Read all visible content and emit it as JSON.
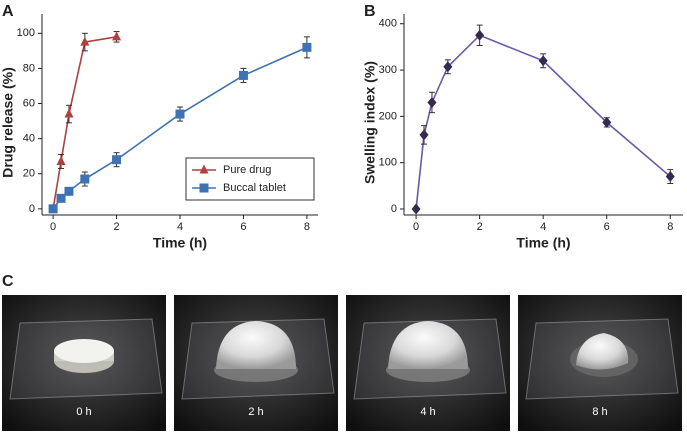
{
  "chart_data": [
    {
      "type": "line",
      "panel": "A",
      "x_label": "Time (h)",
      "y_label": "Drug release (%)",
      "xlim": [
        -0.35,
        8.35
      ],
      "xticks": [
        0,
        2,
        4,
        6,
        8
      ],
      "ylim": [
        -3.5,
        111
      ],
      "yticks": [
        0,
        20,
        40,
        60,
        80,
        100
      ],
      "legend": "lower right",
      "series": [
        {
          "name": "Pure drug",
          "color": "#b04040",
          "marker": "triangle",
          "x": [
            0,
            0.25,
            0.5,
            1,
            2
          ],
          "values": [
            0,
            27,
            54,
            95,
            98
          ],
          "errors": [
            0,
            4,
            5,
            5,
            3
          ]
        },
        {
          "name": "Buccal tablet",
          "color": "#3d72b4",
          "marker": "square",
          "x": [
            0,
            0.25,
            0.5,
            1,
            2,
            4,
            6,
            8
          ],
          "values": [
            0,
            6,
            10,
            17,
            28,
            54,
            76,
            92
          ],
          "errors": [
            0,
            1,
            2,
            4,
            4,
            4,
            4,
            6
          ]
        }
      ]
    },
    {
      "type": "line",
      "panel": "B",
      "x_label": "Time (h)",
      "y_label": "Swelling index (%)",
      "xlim": [
        -0.38,
        8.4
      ],
      "xticks": [
        0,
        2,
        4,
        6,
        8
      ],
      "ylim": [
        -13,
        421
      ],
      "yticks": [
        0,
        100,
        200,
        300,
        400
      ],
      "series": [
        {
          "color": "#6b58a8",
          "marker": "diamond",
          "marker_color": "#35294f",
          "x": [
            0,
            0.25,
            0.5,
            1,
            2,
            4,
            6,
            8
          ],
          "values": [
            0,
            160,
            230,
            307,
            375,
            320,
            187,
            70
          ],
          "errors": [
            0,
            20,
            22,
            15,
            22,
            15,
            10,
            15
          ]
        }
      ]
    }
  ],
  "photos": {
    "panel": "C",
    "labels": [
      "0 h",
      "2 h",
      "4 h",
      "8 h"
    ]
  }
}
